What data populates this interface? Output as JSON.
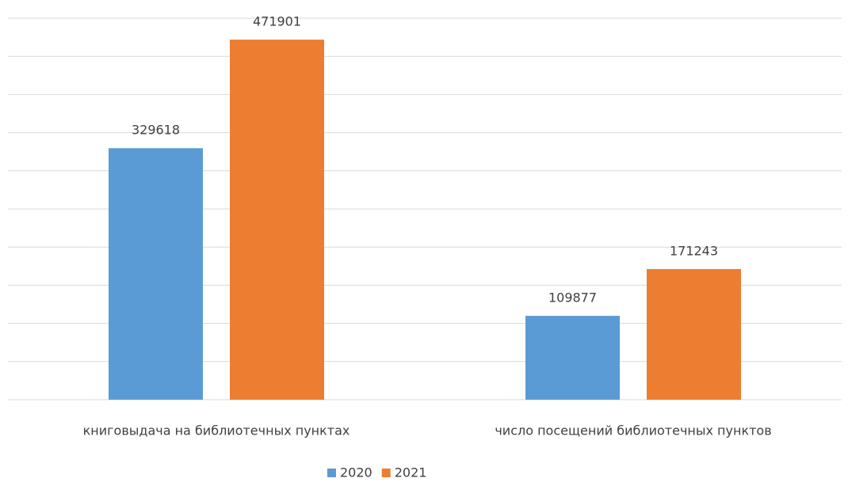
{
  "chart_data": {
    "type": "bar",
    "categories": [
      "книговыдача на библиотечных пунктах",
      "число посещений библиотечных пунктов"
    ],
    "series": [
      {
        "name": "2020",
        "color": "#5b9bd5",
        "values": [
          329618,
          109877
        ]
      },
      {
        "name": "2021",
        "color": "#ed7d31",
        "values": [
          471901,
          171243
        ]
      }
    ],
    "ylim": [
      0,
      500000
    ],
    "yticks": [
      0,
      50000,
      100000,
      150000,
      200000,
      250000,
      300000,
      350000,
      400000,
      450000,
      500000
    ],
    "grid": true,
    "legend": "bottom"
  }
}
